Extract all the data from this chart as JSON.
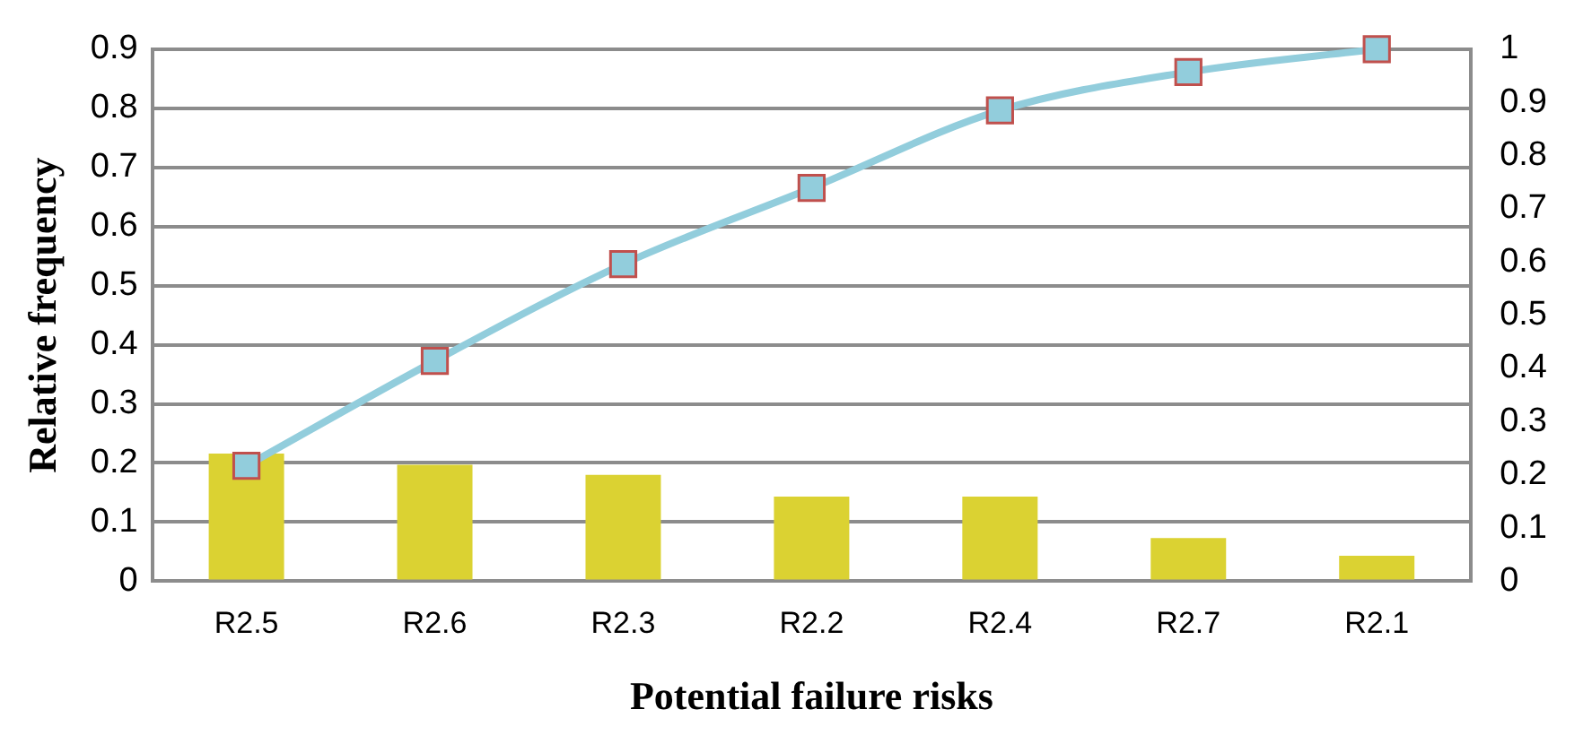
{
  "chart_data": {
    "type": "bar",
    "xlabel": "Potential failure risks",
    "ylabel": "Relative frequency",
    "categories": [
      "R2.5",
      "R2.6",
      "R2.3",
      "R2.2",
      "R2.4",
      "R2.7",
      "R2.1"
    ],
    "series": [
      {
        "color": "#dbd232",
        "values": [
          0.216,
          0.197,
          0.18,
          0.143,
          0.143,
          0.073,
          0.043
        ]
      },
      {
        "type": "line",
        "axis": "y2",
        "color": "#92cddc",
        "marker": "square",
        "values": [
          0.217,
          0.414,
          0.596,
          0.739,
          0.885,
          0.957,
          1.0
        ]
      }
    ],
    "ylim": [
      0,
      0.9
    ],
    "yticks": [
      0,
      0.1,
      0.2,
      0.3,
      0.4,
      0.5,
      0.6,
      0.7,
      0.8,
      0.9
    ],
    "y2lim": [
      0,
      1
    ],
    "y2ticks": [
      0,
      0.1,
      0.2,
      0.3,
      0.4,
      0.5,
      0.6,
      0.7,
      0.8,
      0.9,
      1
    ],
    "grid": "y",
    "legend": false
  }
}
